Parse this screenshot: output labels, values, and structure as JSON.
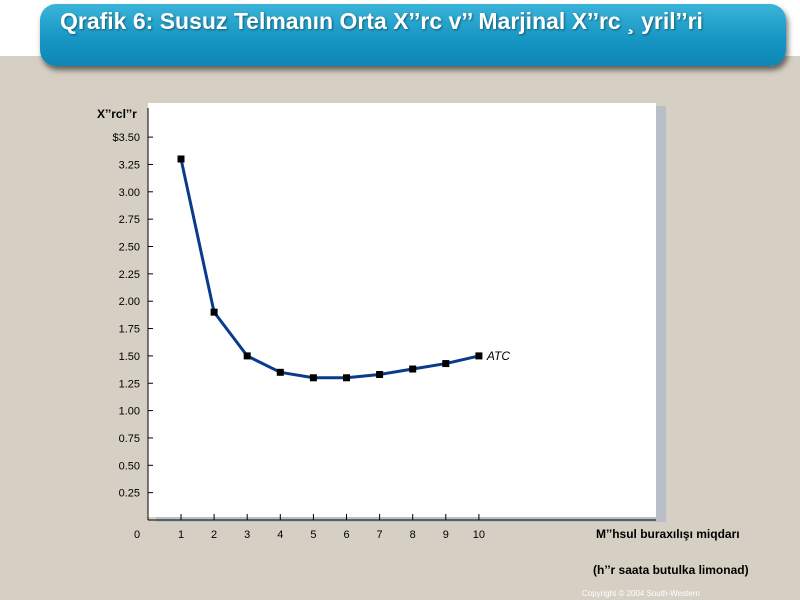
{
  "slide": {
    "title": "Qrafik 6: Susuz Telmanın Orta X’’rc v’’ Marjinal X’’rc ¸ yril’’ri",
    "copyright": "Copyright © 2004  South-Western",
    "colors": {
      "title_bar": "#1797c4",
      "background": "#d6d0c4",
      "line": "#0a3a8c",
      "marker": "#000000"
    }
  },
  "chart_data": {
    "type": "line",
    "title": "",
    "ylabel": "X’’rcl’’r",
    "xlabel_line1": "M’’hsul buraxılışı miqdarı",
    "xlabel_line2": "(h’’r saata butulka limonad)",
    "x": [
      1,
      2,
      3,
      4,
      5,
      6,
      7,
      8,
      9,
      10
    ],
    "series": [
      {
        "name": "ATC",
        "values": [
          3.3,
          1.9,
          1.5,
          1.35,
          1.3,
          1.3,
          1.33,
          1.38,
          1.43,
          1.5
        ]
      }
    ],
    "xlim": [
      0,
      10
    ],
    "ylim": [
      0,
      3.5
    ],
    "x_ticks": [
      "1",
      "2",
      "3",
      "4",
      "5",
      "6",
      "7",
      "8",
      "9",
      "10"
    ],
    "origin_label": "0",
    "y_ticks": [
      {
        "value": 0.25,
        "label": "0.25"
      },
      {
        "value": 0.5,
        "label": "0.50"
      },
      {
        "value": 0.75,
        "label": "0.75"
      },
      {
        "value": 1.0,
        "label": "1.00"
      },
      {
        "value": 1.25,
        "label": "1.25"
      },
      {
        "value": 1.5,
        "label": "1.50"
      },
      {
        "value": 1.75,
        "label": "1.75"
      },
      {
        "value": 2.0,
        "label": "2.00"
      },
      {
        "value": 2.25,
        "label": "2.25"
      },
      {
        "value": 2.5,
        "label": "2.50"
      },
      {
        "value": 2.75,
        "label": "2.75"
      },
      {
        "value": 3.0,
        "label": "3.00"
      },
      {
        "value": 3.25,
        "label": "3.25"
      },
      {
        "value": 3.5,
        "label": "$3.50"
      }
    ],
    "grid": false,
    "legend": "inline label at line end"
  }
}
